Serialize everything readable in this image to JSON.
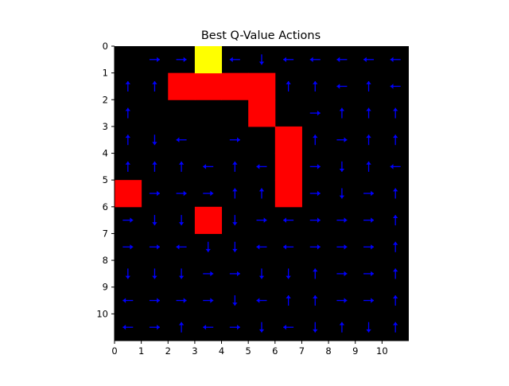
{
  "chart_data": {
    "type": "heatmap",
    "title": "Best Q-Value Actions",
    "xlabel": "",
    "ylabel": "",
    "xlim": [
      0,
      11
    ],
    "ylim": [
      11,
      0
    ],
    "y_inverted": true,
    "xticks": [
      "0",
      "1",
      "2",
      "3",
      "4",
      "5",
      "6",
      "7",
      "8",
      "9",
      "10"
    ],
    "yticks": [
      "0",
      "1",
      "2",
      "3",
      "4",
      "5",
      "6",
      "7",
      "8",
      "9",
      "10"
    ],
    "grid": false,
    "colors": {
      "empty": "#000000",
      "obstacle": "#ff0000",
      "goal": "#ffff00",
      "arrow": "#0000ff"
    },
    "goal": [
      [
        3,
        0
      ]
    ],
    "obstacles": [
      [
        2,
        1
      ],
      [
        3,
        1
      ],
      [
        4,
        1
      ],
      [
        5,
        1
      ],
      [
        5,
        2
      ],
      [
        6,
        3
      ],
      [
        6,
        4
      ],
      [
        6,
        5
      ],
      [
        0,
        5
      ],
      [
        3,
        6
      ]
    ],
    "actions": [
      [
        null,
        "R",
        "R",
        null,
        "L",
        "D",
        "L",
        "L",
        "L",
        "L",
        "L"
      ],
      [
        "U",
        "U",
        null,
        null,
        null,
        null,
        "U",
        "U",
        "L",
        "U",
        "L"
      ],
      [
        "U",
        null,
        null,
        null,
        null,
        null,
        null,
        "R",
        "U",
        "U",
        "U"
      ],
      [
        "U",
        "D",
        "L",
        null,
        "R",
        null,
        null,
        "U",
        "R",
        "U",
        "U"
      ],
      [
        "U",
        "U",
        "U",
        "L",
        "U",
        "L",
        null,
        "R",
        "D",
        "U",
        "L"
      ],
      [
        null,
        "R",
        "R",
        "R",
        "U",
        "U",
        null,
        "R",
        "D",
        "R",
        "U"
      ],
      [
        "R",
        "D",
        "D",
        null,
        "D",
        "R",
        "L",
        "R",
        "R",
        "R",
        "U"
      ],
      [
        "R",
        "R",
        "L",
        "D",
        "D",
        "L",
        "L",
        "R",
        "R",
        "R",
        "U"
      ],
      [
        "D",
        "D",
        "D",
        "R",
        "R",
        "D",
        "D",
        "U",
        "R",
        "R",
        "U"
      ],
      [
        "L",
        "R",
        "R",
        "R",
        "D",
        "L",
        "U",
        "U",
        "R",
        "R",
        "U"
      ],
      [
        "L",
        "R",
        "U",
        "L",
        "R",
        "D",
        "L",
        "D",
        "U",
        "D",
        "U"
      ]
    ]
  }
}
